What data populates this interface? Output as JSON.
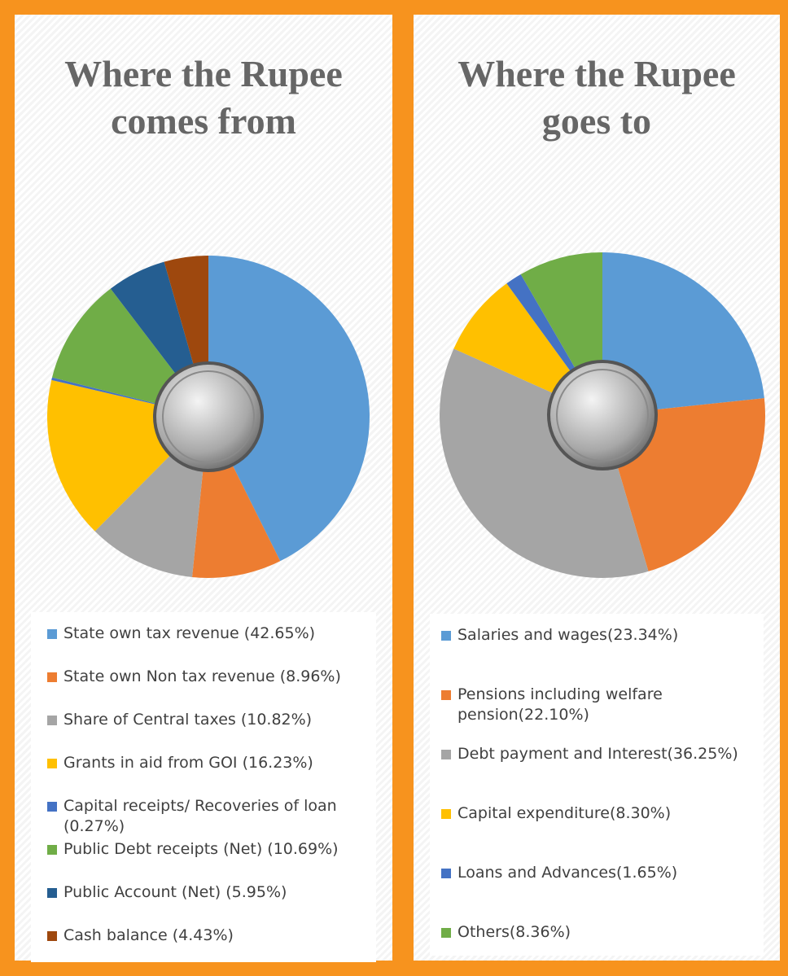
{
  "chart_data": [
    {
      "type": "pie",
      "title": "Where the Rupee comes from",
      "categories": [
        "State own tax revenue (42.65%)",
        "State own Non tax revenue (8.96%)",
        "Share of Central taxes (10.82%)",
        "Grants in aid from GOI (16.23%)",
        "Capital receipts/ Recoveries of loan (0.27%)",
        "Public Debt receipts (Net) (10.69%)",
        "Public Account (Net) (5.95%)",
        "Cash balance (4.43%)"
      ],
      "values": [
        42.65,
        8.96,
        10.82,
        16.23,
        0.27,
        10.69,
        5.95,
        4.43
      ],
      "colors": [
        "#5b9bd5",
        "#ed7d31",
        "#a5a5a5",
        "#ffc000",
        "#4472c4",
        "#70ad47",
        "#255e91",
        "#9e480e"
      ]
    },
    {
      "type": "pie",
      "title": "Where the Rupee goes to",
      "categories": [
        "Salaries and wages(23.34%)",
        "Pensions including welfare pension(22.10%)",
        "Debt payment and Interest(36.25%)",
        "Capital expenditure(8.30%)",
        "Loans and Advances(1.65%)",
        "Others(8.36%)"
      ],
      "values": [
        23.34,
        22.1,
        36.25,
        8.3,
        1.65,
        8.36
      ],
      "colors": [
        "#5b9bd5",
        "#ed7d31",
        "#a5a5a5",
        "#ffc000",
        "#4472c4",
        "#70ad47"
      ]
    }
  ]
}
